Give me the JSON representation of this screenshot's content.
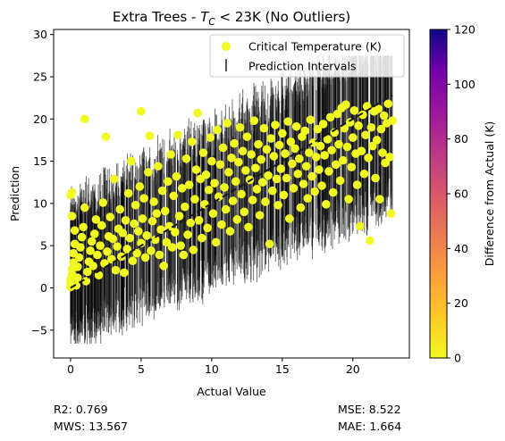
{
  "chart_data": {
    "type": "scatter",
    "title_prefix": "Extra Trees - ",
    "title_math_T": "T",
    "title_math_sub": "C",
    "title_suffix": " < 23K (No Outliers)",
    "xlabel": "Actual Value",
    "ylabel": "Prediction",
    "xlim": [
      -1.2,
      24.0
    ],
    "ylim": [
      -8.3,
      30.6
    ],
    "xticks": [
      0,
      5,
      10,
      15,
      20
    ],
    "yticks": [
      -5,
      0,
      5,
      10,
      15,
      20,
      25,
      30
    ],
    "legend_position": "top-right",
    "legend": {
      "points_label": "Critical Temperature (K)",
      "intervals_label": "Prediction Intervals"
    },
    "reference_line": {
      "style": "dashed",
      "color": "#1a1a1a",
      "x": [
        0,
        22.8
      ],
      "y": [
        0,
        22.8
      ]
    },
    "colorbar": {
      "label": "Difference from Actual (K)",
      "range": [
        0,
        120
      ],
      "ticks": [
        0,
        20,
        40,
        60,
        80,
        100,
        120
      ],
      "colormap": "plasma_r"
    },
    "series": [
      {
        "name": "Critical Temperature (K)",
        "color": "#f0f921",
        "points": [
          [
            0.0,
            0.1
          ],
          [
            0.0,
            0.5
          ],
          [
            0.0,
            1.0
          ],
          [
            0.1,
            1.6
          ],
          [
            0.1,
            2.2
          ],
          [
            0.2,
            3.0
          ],
          [
            0.2,
            4.1
          ],
          [
            0.3,
            5.2
          ],
          [
            0.3,
            6.8
          ],
          [
            0.1,
            8.5
          ],
          [
            0.0,
            11.0
          ],
          [
            0.1,
            11.3
          ],
          [
            0.4,
            0.3
          ],
          [
            0.5,
            1.2
          ],
          [
            0.5,
            2.5
          ],
          [
            0.6,
            3.6
          ],
          [
            0.7,
            4.8
          ],
          [
            0.8,
            6.0
          ],
          [
            0.9,
            7.2
          ],
          [
            1.0,
            9.5
          ],
          [
            1.0,
            20.0
          ],
          [
            1.1,
            0.8
          ],
          [
            1.2,
            1.9
          ],
          [
            1.3,
            3.1
          ],
          [
            1.4,
            4.4
          ],
          [
            1.5,
            5.5
          ],
          [
            1.6,
            2.6
          ],
          [
            1.7,
            6.4
          ],
          [
            1.8,
            8.1
          ],
          [
            1.9,
            3.9
          ],
          [
            2.0,
            1.5
          ],
          [
            2.1,
            5.0
          ],
          [
            2.2,
            7.4
          ],
          [
            2.3,
            10.1
          ],
          [
            2.5,
            17.9
          ],
          [
            2.4,
            2.9
          ],
          [
            2.6,
            4.3
          ],
          [
            2.7,
            6.1
          ],
          [
            2.8,
            8.4
          ],
          [
            2.9,
            3.4
          ],
          [
            3.0,
            5.8
          ],
          [
            3.1,
            12.9
          ],
          [
            3.2,
            2.1
          ],
          [
            3.3,
            4.9
          ],
          [
            3.4,
            7.0
          ],
          [
            3.5,
            9.3
          ],
          [
            3.6,
            3.7
          ],
          [
            3.7,
            6.5
          ],
          [
            3.8,
            1.8
          ],
          [
            3.9,
            8.0
          ],
          [
            4.0,
            4.6
          ],
          [
            4.1,
            11.2
          ],
          [
            4.2,
            5.9
          ],
          [
            4.3,
            15.0
          ],
          [
            4.4,
            3.2
          ],
          [
            4.5,
            7.6
          ],
          [
            4.6,
            9.8
          ],
          [
            4.7,
            4.1
          ],
          [
            4.8,
            6.7
          ],
          [
            4.9,
            12.0
          ],
          [
            5.0,
            20.9
          ],
          [
            5.0,
            5.3
          ],
          [
            5.1,
            8.2
          ],
          [
            5.2,
            10.6
          ],
          [
            5.3,
            3.6
          ],
          [
            5.4,
            6.2
          ],
          [
            5.5,
            13.7
          ],
          [
            5.6,
            18.0
          ],
          [
            5.7,
            4.4
          ],
          [
            5.8,
            7.9
          ],
          [
            5.9,
            10.2
          ],
          [
            6.0,
            5.7
          ],
          [
            6.1,
            8.8
          ],
          [
            6.2,
            14.4
          ],
          [
            6.3,
            3.9
          ],
          [
            6.4,
            6.9
          ],
          [
            6.5,
            11.5
          ],
          [
            6.6,
            2.6
          ],
          [
            6.7,
            9.1
          ],
          [
            6.8,
            5.4
          ],
          [
            6.9,
            12.6
          ],
          [
            7.0,
            7.3
          ],
          [
            7.1,
            15.8
          ],
          [
            7.2,
            4.8
          ],
          [
            7.3,
            10.9
          ],
          [
            7.4,
            6.6
          ],
          [
            7.5,
            13.2
          ],
          [
            7.6,
            18.1
          ],
          [
            7.7,
            8.5
          ],
          [
            7.8,
            5.0
          ],
          [
            7.9,
            11.8
          ],
          [
            8.0,
            3.9
          ],
          [
            8.1,
            9.6
          ],
          [
            8.2,
            15.3
          ],
          [
            8.3,
            6.3
          ],
          [
            8.4,
            12.2
          ],
          [
            8.5,
            7.7
          ],
          [
            8.6,
            17.3
          ],
          [
            8.7,
            4.5
          ],
          [
            8.8,
            10.5
          ],
          [
            8.9,
            14.0
          ],
          [
            9.0,
            20.7
          ],
          [
            9.1,
            8.0
          ],
          [
            9.2,
            12.9
          ],
          [
            9.3,
            5.9
          ],
          [
            9.4,
            16.0
          ],
          [
            9.5,
            9.9
          ],
          [
            9.6,
            13.4
          ],
          [
            9.7,
            7.1
          ],
          [
            9.8,
            11.6
          ],
          [
            9.9,
            17.8
          ],
          [
            10.0,
            15.0
          ],
          [
            10.1,
            8.8
          ],
          [
            10.2,
            12.4
          ],
          [
            10.3,
            5.4
          ],
          [
            10.4,
            18.7
          ],
          [
            10.5,
            10.8
          ],
          [
            10.6,
            14.6
          ],
          [
            10.7,
            7.5
          ],
          [
            10.8,
            16.6
          ],
          [
            10.9,
            11.9
          ],
          [
            11.0,
            9.3
          ],
          [
            11.1,
            19.5
          ],
          [
            11.2,
            13.7
          ],
          [
            11.3,
            6.7
          ],
          [
            11.4,
            15.4
          ],
          [
            11.5,
            10.3
          ],
          [
            11.6,
            17.1
          ],
          [
            11.7,
            12.6
          ],
          [
            11.8,
            8.1
          ],
          [
            11.9,
            14.9
          ],
          [
            12.0,
            19.0
          ],
          [
            12.1,
            11.1
          ],
          [
            12.2,
            16.2
          ],
          [
            12.3,
            9.0
          ],
          [
            12.4,
            13.9
          ],
          [
            12.5,
            17.9
          ],
          [
            12.6,
            7.2
          ],
          [
            12.7,
            12.8
          ],
          [
            12.8,
            15.8
          ],
          [
            12.9,
            10.4
          ],
          [
            13.0,
            19.8
          ],
          [
            13.1,
            14.2
          ],
          [
            13.2,
            11.7
          ],
          [
            13.3,
            17.0
          ],
          [
            13.4,
            8.6
          ],
          [
            13.5,
            15.2
          ],
          [
            13.6,
            12.5
          ],
          [
            13.7,
            18.9
          ],
          [
            13.8,
            10.2
          ],
          [
            13.9,
            16.4
          ],
          [
            14.0,
            13.3
          ],
          [
            14.1,
            5.2
          ],
          [
            14.2,
            17.7
          ],
          [
            14.3,
            11.5
          ],
          [
            14.4,
            15.6
          ],
          [
            14.5,
            19.3
          ],
          [
            14.6,
            12.9
          ],
          [
            14.7,
            9.8
          ],
          [
            14.8,
            16.9
          ],
          [
            14.9,
            14.1
          ],
          [
            15.0,
            18.3
          ],
          [
            15.1,
            11.0
          ],
          [
            15.2,
            15.9
          ],
          [
            15.3,
            13.0
          ],
          [
            15.4,
            19.7
          ],
          [
            15.5,
            8.2
          ],
          [
            15.6,
            17.3
          ],
          [
            15.7,
            14.7
          ],
          [
            15.8,
            11.8
          ],
          [
            15.9,
            16.5
          ],
          [
            16.0,
            19.1
          ],
          [
            16.1,
            13.5
          ],
          [
            16.2,
            15.3
          ],
          [
            16.3,
            9.5
          ],
          [
            16.4,
            17.9
          ],
          [
            16.5,
            12.3
          ],
          [
            16.6,
            18.6
          ],
          [
            16.7,
            14.4
          ],
          [
            16.8,
            10.6
          ],
          [
            16.9,
            16.0
          ],
          [
            17.0,
            19.9
          ],
          [
            17.1,
            13.2
          ],
          [
            17.2,
            17.2
          ],
          [
            17.3,
            11.4
          ],
          [
            17.4,
            15.5
          ],
          [
            17.5,
            18.8
          ],
          [
            17.6,
            14.0
          ],
          [
            17.7,
            16.8
          ],
          [
            17.8,
            12.1
          ],
          [
            17.9,
            19.4
          ],
          [
            18.0,
            15.7
          ],
          [
            18.1,
            9.9
          ],
          [
            18.2,
            17.6
          ],
          [
            18.3,
            13.8
          ],
          [
            18.4,
            20.2
          ],
          [
            18.5,
            16.3
          ],
          [
            18.6,
            11.3
          ],
          [
            18.7,
            18.4
          ],
          [
            18.8,
            14.6
          ],
          [
            18.9,
            20.6
          ],
          [
            19.0,
            17.0
          ],
          [
            19.1,
            12.7
          ],
          [
            19.2,
            21.3
          ],
          [
            19.3,
            15.1
          ],
          [
            19.4,
            18.9
          ],
          [
            19.5,
            21.7
          ],
          [
            19.6,
            16.7
          ],
          [
            19.7,
            10.5
          ],
          [
            19.8,
            19.6
          ],
          [
            19.9,
            14.3
          ],
          [
            20.0,
            17.8
          ],
          [
            20.1,
            21.0
          ],
          [
            20.2,
            15.9
          ],
          [
            20.3,
            12.2
          ],
          [
            20.4,
            19.2
          ],
          [
            20.5,
            7.3
          ],
          [
            20.6,
            16.2
          ],
          [
            20.7,
            20.5
          ],
          [
            20.8,
            13.5
          ],
          [
            20.9,
            18.1
          ],
          [
            21.0,
            21.5
          ],
          [
            21.1,
            15.4
          ],
          [
            21.2,
            5.6
          ],
          [
            21.3,
            19.0
          ],
          [
            21.4,
            16.8
          ],
          [
            21.5,
            20.9
          ],
          [
            21.6,
            13.0
          ],
          [
            21.7,
            17.5
          ],
          [
            21.8,
            21.2
          ],
          [
            21.9,
            10.5
          ],
          [
            22.0,
            18.8
          ],
          [
            22.1,
            16.0
          ],
          [
            22.2,
            20.4
          ],
          [
            22.3,
            14.8
          ],
          [
            22.4,
            19.5
          ],
          [
            22.5,
            21.8
          ],
          [
            22.6,
            15.5
          ],
          [
            22.7,
            8.8
          ],
          [
            22.8,
            19.8
          ]
        ]
      }
    ]
  },
  "stats": {
    "r2": "R2: 0.769",
    "mws": "MWS: 13.567",
    "mse": "MSE: 8.522",
    "mae": "MAE: 1.664"
  }
}
